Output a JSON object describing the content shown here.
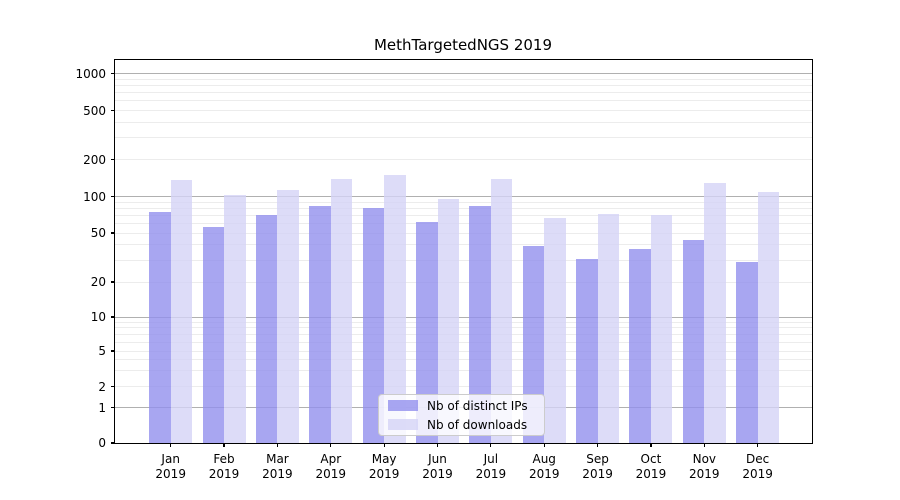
{
  "title": "MethTargetedNGS 2019",
  "year": "2019",
  "months": [
    "Jan",
    "Feb",
    "Mar",
    "Apr",
    "May",
    "Jun",
    "Jul",
    "Aug",
    "Sep",
    "Oct",
    "Nov",
    "Dec"
  ],
  "legend": {
    "items": [
      {
        "label": "Nb of distinct IPs",
        "key": "ips"
      },
      {
        "label": "Nb of downloads",
        "key": "downloads"
      }
    ]
  },
  "axes": {
    "yticks": [
      "0",
      "1",
      "2",
      "5",
      "10",
      "20",
      "50",
      "100",
      "200",
      "500",
      "1000"
    ]
  },
  "colors": {
    "ips_fill": "rgba(146,144,238,0.8)",
    "ips_hex": "#a8a6f1",
    "downloads_fill": "rgba(213,211,246,0.8)",
    "downloads_hex": "#dedcf8",
    "grid_major": "#b0b0b0",
    "grid_minor": "#ececec",
    "axis": "#000000"
  },
  "chart_data": {
    "type": "bar",
    "title": "MethTargetedNGS 2019",
    "categories": [
      "Jan 2019",
      "Feb 2019",
      "Mar 2019",
      "Apr 2019",
      "May 2019",
      "Jun 2019",
      "Jul 2019",
      "Aug 2019",
      "Sep 2019",
      "Oct 2019",
      "Nov 2019",
      "Dec 2019"
    ],
    "series": [
      {
        "name": "Nb of distinct IPs",
        "key": "ips",
        "values": [
          75,
          56,
          70,
          83,
          80,
          62,
          83,
          39,
          31,
          37,
          44,
          29
        ]
      },
      {
        "name": "Nb of downloads",
        "key": "downloads",
        "values": [
          135,
          102,
          112,
          138,
          151,
          96,
          138,
          67,
          72,
          70,
          130,
          108
        ]
      }
    ],
    "xlabel": "",
    "ylabel": "",
    "yscale": "symlog",
    "yticks": [
      0,
      1,
      2,
      5,
      10,
      20,
      50,
      100,
      200,
      500,
      1000
    ],
    "ylim": [
      0,
      1500
    ],
    "grid": true,
    "legend_position": "lower center"
  }
}
